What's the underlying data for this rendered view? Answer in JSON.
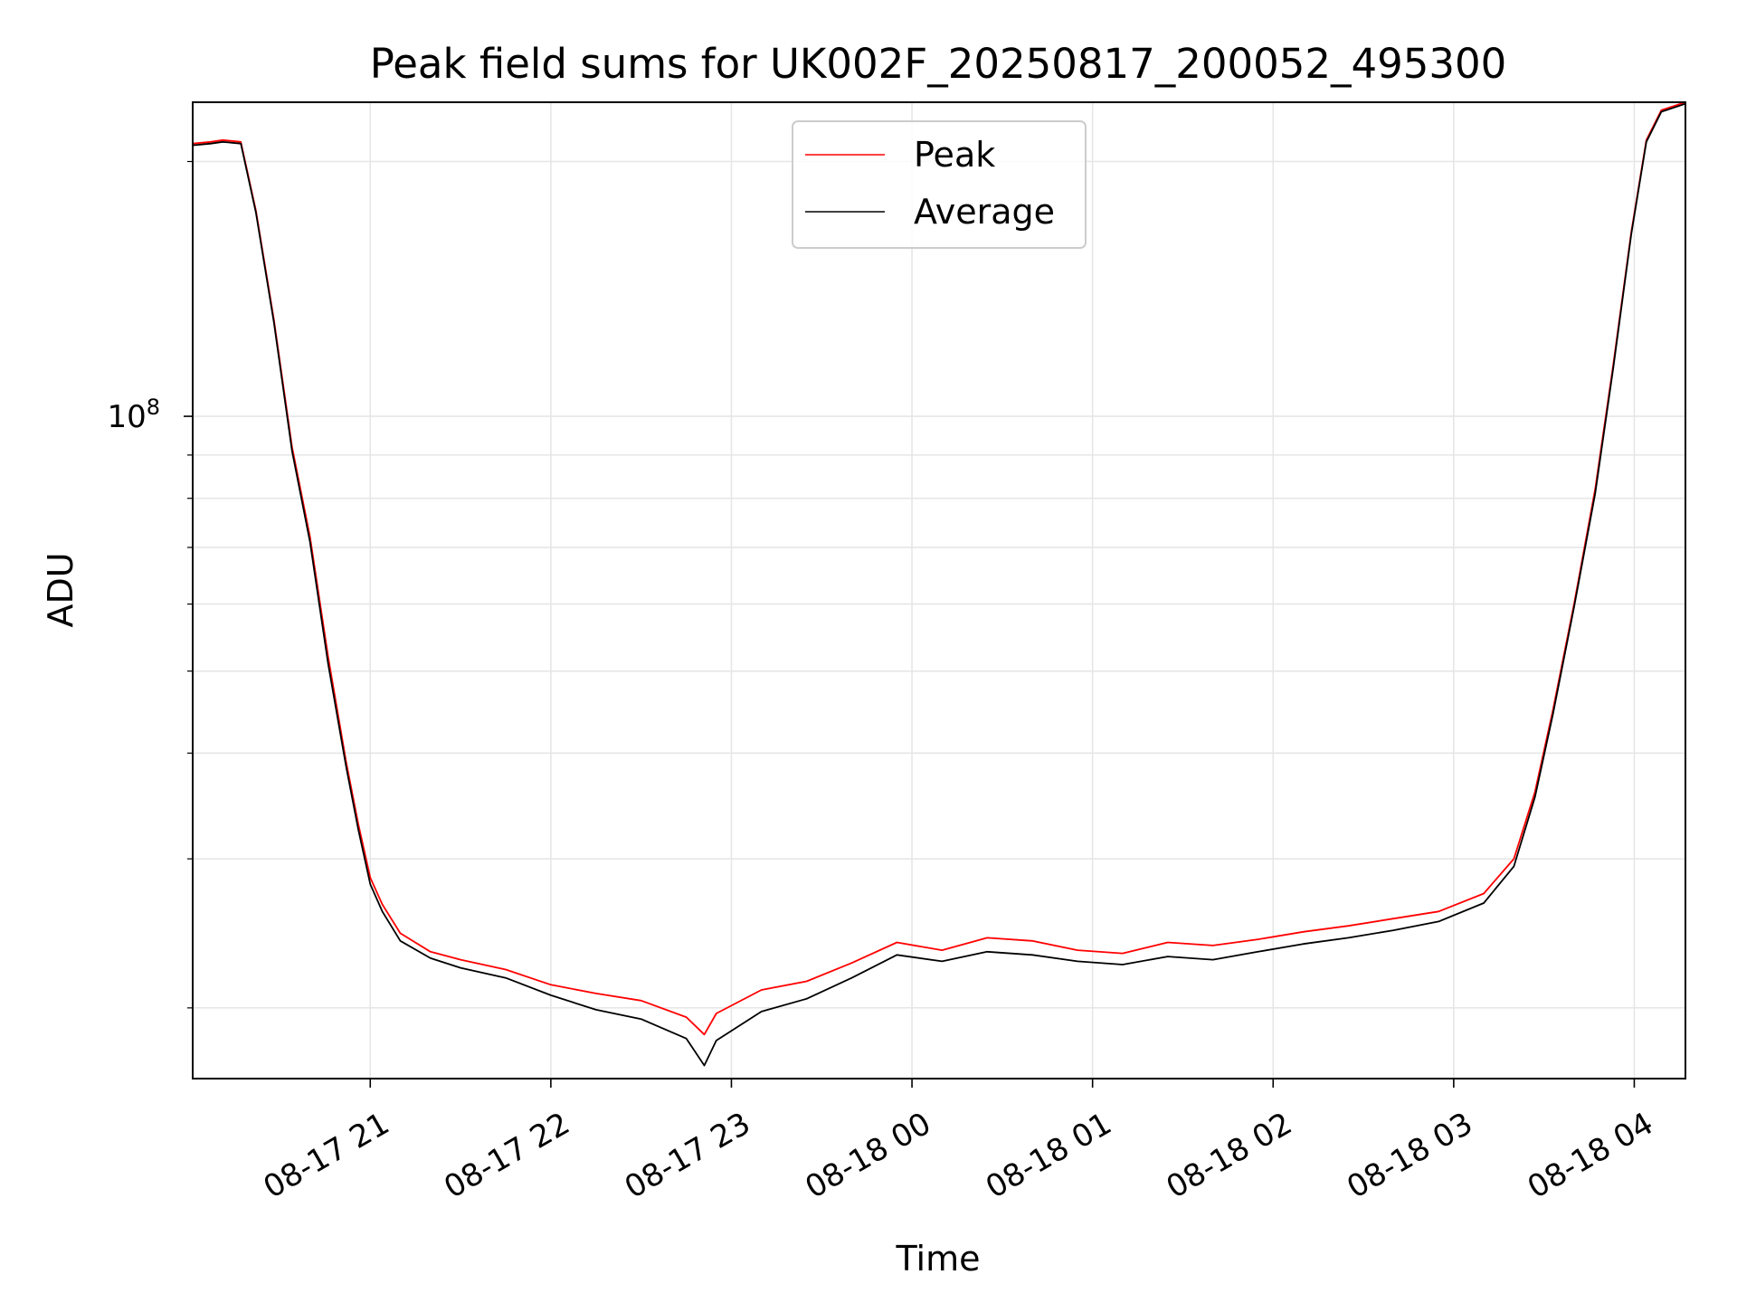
{
  "chart_data": {
    "type": "line",
    "title": "Peak field sums for UK002F_20250817_200052_495300",
    "xlabel": "Time",
    "ylabel": "ADU",
    "y_scale": "log",
    "x_range": [
      "2025-08-17 20:01",
      "2025-08-18 04:17"
    ],
    "ylim": [
      16500000,
      235000000
    ],
    "x_ticks": [
      {
        "t": "2025-08-17 21:00",
        "label": "08-17 21"
      },
      {
        "t": "2025-08-17 22:00",
        "label": "08-17 22"
      },
      {
        "t": "2025-08-17 23:00",
        "label": "08-17 23"
      },
      {
        "t": "2025-08-18 00:00",
        "label": "08-18 00"
      },
      {
        "t": "2025-08-18 01:00",
        "label": "08-18 01"
      },
      {
        "t": "2025-08-18 02:00",
        "label": "08-18 02"
      },
      {
        "t": "2025-08-18 03:00",
        "label": "08-18 03"
      },
      {
        "t": "2025-08-18 04:00",
        "label": "08-18 04"
      }
    ],
    "y_ticks": [
      {
        "value": 100000000,
        "label_base": "10",
        "label_exp": "8"
      }
    ],
    "grid": true,
    "legend_position": "top-center",
    "series": [
      {
        "name": "Peak",
        "color": "#ff0000",
        "points": [
          [
            "2025-08-17 20:01",
            210000000
          ],
          [
            "2025-08-17 20:07",
            211000000
          ],
          [
            "2025-08-17 20:11",
            212000000
          ],
          [
            "2025-08-17 20:17",
            211000000
          ],
          [
            "2025-08-17 20:22",
            175000000
          ],
          [
            "2025-08-17 20:28",
            130000000
          ],
          [
            "2025-08-17 20:34",
            92000000
          ],
          [
            "2025-08-17 20:40",
            72000000
          ],
          [
            "2025-08-17 20:46",
            52000000
          ],
          [
            "2025-08-17 20:52",
            39000000
          ],
          [
            "2025-08-17 20:56",
            33000000
          ],
          [
            "2025-08-17 21:00",
            28500000
          ],
          [
            "2025-08-17 21:04",
            26500000
          ],
          [
            "2025-08-17 21:10",
            24500000
          ],
          [
            "2025-08-17 21:20",
            23300000
          ],
          [
            "2025-08-17 21:30",
            22800000
          ],
          [
            "2025-08-17 21:45",
            22200000
          ],
          [
            "2025-08-17 22:00",
            21300000
          ],
          [
            "2025-08-17 22:15",
            20800000
          ],
          [
            "2025-08-17 22:30",
            20400000
          ],
          [
            "2025-08-17 22:45",
            19500000
          ],
          [
            "2025-08-17 22:51",
            18600000
          ],
          [
            "2025-08-17 22:55",
            19700000
          ],
          [
            "2025-08-17 23:10",
            21000000
          ],
          [
            "2025-08-17 23:25",
            21500000
          ],
          [
            "2025-08-17 23:40",
            22600000
          ],
          [
            "2025-08-17 23:55",
            23900000
          ],
          [
            "2025-08-18 00:10",
            23400000
          ],
          [
            "2025-08-18 00:25",
            24200000
          ],
          [
            "2025-08-18 00:40",
            24000000
          ],
          [
            "2025-08-18 00:55",
            23400000
          ],
          [
            "2025-08-18 01:10",
            23200000
          ],
          [
            "2025-08-18 01:25",
            23900000
          ],
          [
            "2025-08-18 01:40",
            23700000
          ],
          [
            "2025-08-18 01:55",
            24100000
          ],
          [
            "2025-08-18 02:10",
            24600000
          ],
          [
            "2025-08-18 02:25",
            25000000
          ],
          [
            "2025-08-18 02:40",
            25500000
          ],
          [
            "2025-08-18 02:55",
            26000000
          ],
          [
            "2025-08-18 03:10",
            27300000
          ],
          [
            "2025-08-18 03:20",
            30000000
          ],
          [
            "2025-08-18 03:27",
            36000000
          ],
          [
            "2025-08-18 03:33",
            45000000
          ],
          [
            "2025-08-18 03:40",
            60000000
          ],
          [
            "2025-08-18 03:47",
            82000000
          ],
          [
            "2025-08-18 03:53",
            115000000
          ],
          [
            "2025-08-18 03:59",
            165000000
          ],
          [
            "2025-08-18 04:04",
            212000000
          ],
          [
            "2025-08-18 04:09",
            230000000
          ],
          [
            "2025-08-18 04:17",
            235000000
          ]
        ]
      },
      {
        "name": "Average",
        "color": "#000000",
        "points": [
          [
            "2025-08-17 20:01",
            209000000
          ],
          [
            "2025-08-17 20:07",
            210000000
          ],
          [
            "2025-08-17 20:11",
            211000000
          ],
          [
            "2025-08-17 20:17",
            210000000
          ],
          [
            "2025-08-17 20:22",
            174000000
          ],
          [
            "2025-08-17 20:28",
            129000000
          ],
          [
            "2025-08-17 20:34",
            91000000
          ],
          [
            "2025-08-17 20:40",
            71000000
          ],
          [
            "2025-08-17 20:46",
            51000000
          ],
          [
            "2025-08-17 20:52",
            38500000
          ],
          [
            "2025-08-17 20:56",
            32500000
          ],
          [
            "2025-08-17 21:00",
            28000000
          ],
          [
            "2025-08-17 21:04",
            26000000
          ],
          [
            "2025-08-17 21:10",
            24000000
          ],
          [
            "2025-08-17 21:20",
            22900000
          ],
          [
            "2025-08-17 21:30",
            22300000
          ],
          [
            "2025-08-17 21:45",
            21700000
          ],
          [
            "2025-08-17 22:00",
            20700000
          ],
          [
            "2025-08-17 22:15",
            19900000
          ],
          [
            "2025-08-17 22:30",
            19400000
          ],
          [
            "2025-08-17 22:45",
            18400000
          ],
          [
            "2025-08-17 22:51",
            17100000
          ],
          [
            "2025-08-17 22:55",
            18300000
          ],
          [
            "2025-08-17 23:10",
            19800000
          ],
          [
            "2025-08-17 23:25",
            20500000
          ],
          [
            "2025-08-17 23:40",
            21700000
          ],
          [
            "2025-08-17 23:55",
            23100000
          ],
          [
            "2025-08-18 00:10",
            22700000
          ],
          [
            "2025-08-18 00:25",
            23300000
          ],
          [
            "2025-08-18 00:40",
            23100000
          ],
          [
            "2025-08-18 00:55",
            22700000
          ],
          [
            "2025-08-18 01:10",
            22500000
          ],
          [
            "2025-08-18 01:25",
            23000000
          ],
          [
            "2025-08-18 01:40",
            22800000
          ],
          [
            "2025-08-18 01:55",
            23300000
          ],
          [
            "2025-08-18 02:10",
            23800000
          ],
          [
            "2025-08-18 02:25",
            24200000
          ],
          [
            "2025-08-18 02:40",
            24700000
          ],
          [
            "2025-08-18 02:55",
            25300000
          ],
          [
            "2025-08-18 03:10",
            26600000
          ],
          [
            "2025-08-18 03:20",
            29400000
          ],
          [
            "2025-08-18 03:27",
            35500000
          ],
          [
            "2025-08-18 03:33",
            44500000
          ],
          [
            "2025-08-18 03:40",
            59500000
          ],
          [
            "2025-08-18 03:47",
            81000000
          ],
          [
            "2025-08-18 03:53",
            114000000
          ],
          [
            "2025-08-18 03:59",
            164000000
          ],
          [
            "2025-08-18 04:04",
            211000000
          ],
          [
            "2025-08-18 04:09",
            229000000
          ],
          [
            "2025-08-18 04:17",
            234000000
          ]
        ]
      }
    ]
  }
}
